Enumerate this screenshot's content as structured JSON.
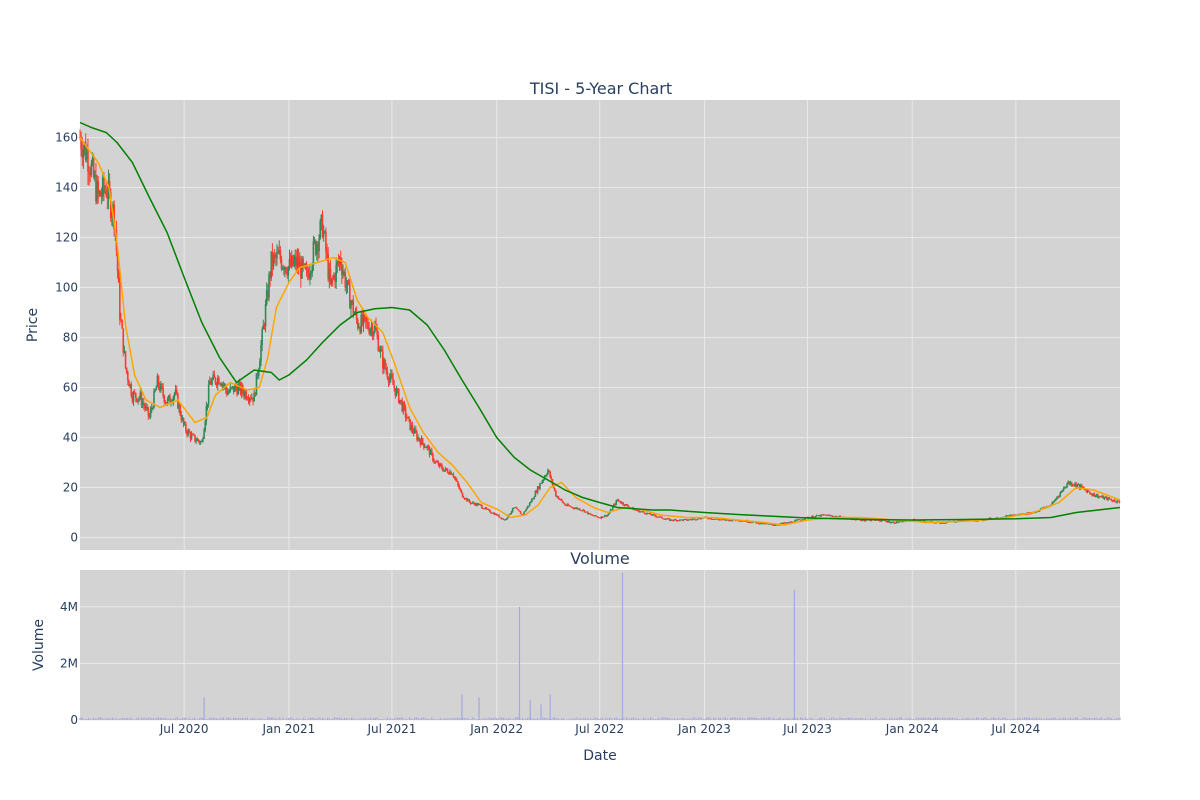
{
  "chart_data": [
    {
      "type": "candlestick",
      "title": "TISI - 5-Year Chart",
      "xlabel": "",
      "ylabel": "Price",
      "ylim": [
        -5,
        175
      ],
      "yticks": [
        0,
        20,
        40,
        60,
        80,
        100,
        120,
        140,
        160
      ],
      "grid": true,
      "legend": "none",
      "colors": {
        "up": "#2e8b57",
        "down": "#ff3b30",
        "ma_short": "#ffa500",
        "ma_long": "#008000",
        "plot_bg": "#d3d3d3",
        "grid": "#e8e8e8"
      },
      "series": [
        {
          "kind": "ohlc_close_path",
          "points": [
            [
              "2019-12-31",
              160
            ],
            [
              "2020-01-15",
              152
            ],
            [
              "2020-02-01",
              136
            ],
            [
              "2020-02-15",
              140
            ],
            [
              "2020-03-01",
              128
            ],
            [
              "2020-03-10",
              90
            ],
            [
              "2020-03-20",
              68
            ],
            [
              "2020-04-01",
              57
            ],
            [
              "2020-04-15",
              56
            ],
            [
              "2020-05-01",
              48
            ],
            [
              "2020-05-15",
              62
            ],
            [
              "2020-06-01",
              54
            ],
            [
              "2020-06-15",
              58
            ],
            [
              "2020-07-01",
              44
            ],
            [
              "2020-07-15",
              40
            ],
            [
              "2020-08-01",
              38
            ],
            [
              "2020-08-15",
              62
            ],
            [
              "2020-09-01",
              64
            ],
            [
              "2020-09-15",
              58
            ],
            [
              "2020-10-01",
              60
            ],
            [
              "2020-10-15",
              58
            ],
            [
              "2020-11-01",
              56
            ],
            [
              "2020-11-15",
              80
            ],
            [
              "2020-12-01",
              110
            ],
            [
              "2020-12-15",
              112
            ],
            [
              "2021-01-01",
              108
            ],
            [
              "2021-01-15",
              110
            ],
            [
              "2021-02-01",
              104
            ],
            [
              "2021-02-15",
              116
            ],
            [
              "2021-03-01",
              125
            ],
            [
              "2021-03-15",
              100
            ],
            [
              "2021-04-01",
              112
            ],
            [
              "2021-04-15",
              98
            ],
            [
              "2021-05-01",
              86
            ],
            [
              "2021-05-15",
              85
            ],
            [
              "2021-06-01",
              84
            ],
            [
              "2021-06-15",
              70
            ],
            [
              "2021-07-01",
              62
            ],
            [
              "2021-07-15",
              55
            ],
            [
              "2021-08-01",
              45
            ],
            [
              "2021-08-15",
              40
            ],
            [
              "2021-09-01",
              36
            ],
            [
              "2021-09-15",
              30
            ],
            [
              "2021-10-01",
              27
            ],
            [
              "2021-10-15",
              26
            ],
            [
              "2021-11-01",
              17
            ],
            [
              "2021-11-15",
              14
            ],
            [
              "2021-12-01",
              13
            ],
            [
              "2021-12-15",
              11
            ],
            [
              "2022-01-01",
              9
            ],
            [
              "2022-01-15",
              7
            ],
            [
              "2022-02-01",
              12
            ],
            [
              "2022-02-15",
              9
            ],
            [
              "2022-03-01",
              14
            ],
            [
              "2022-03-15",
              20
            ],
            [
              "2022-04-01",
              27
            ],
            [
              "2022-04-15",
              17
            ],
            [
              "2022-05-01",
              13
            ],
            [
              "2022-05-15",
              12
            ],
            [
              "2022-06-01",
              11
            ],
            [
              "2022-06-15",
              9
            ],
            [
              "2022-07-01",
              8
            ],
            [
              "2022-07-15",
              9
            ],
            [
              "2022-08-01",
              15
            ],
            [
              "2022-08-15",
              13
            ],
            [
              "2022-09-01",
              11
            ],
            [
              "2022-10-01",
              9
            ],
            [
              "2022-11-01",
              7
            ],
            [
              "2022-12-01",
              7
            ],
            [
              "2023-01-01",
              8
            ],
            [
              "2023-02-01",
              7
            ],
            [
              "2023-03-01",
              7
            ],
            [
              "2023-04-01",
              6
            ],
            [
              "2023-05-01",
              5
            ],
            [
              "2023-06-01",
              6
            ],
            [
              "2023-07-01",
              8
            ],
            [
              "2023-08-01",
              9
            ],
            [
              "2023-09-01",
              8
            ],
            [
              "2023-10-01",
              7
            ],
            [
              "2023-11-01",
              7
            ],
            [
              "2023-12-01",
              6
            ],
            [
              "2024-01-01",
              7
            ],
            [
              "2024-02-01",
              6
            ],
            [
              "2024-03-01",
              6
            ],
            [
              "2024-04-01",
              7
            ],
            [
              "2024-05-01",
              7
            ],
            [
              "2024-06-01",
              8
            ],
            [
              "2024-07-01",
              9
            ],
            [
              "2024-08-01",
              10
            ],
            [
              "2024-09-01",
              13
            ],
            [
              "2024-10-01",
              22
            ],
            [
              "2024-10-15",
              21
            ],
            [
              "2024-11-01",
              19
            ],
            [
              "2024-11-15",
              17
            ],
            [
              "2024-12-01",
              16
            ],
            [
              "2024-12-31",
              14
            ]
          ]
        },
        {
          "kind": "ma_short",
          "points": [
            [
              "2019-12-31",
              160
            ],
            [
              "2020-02-01",
              150
            ],
            [
              "2020-02-20",
              140
            ],
            [
              "2020-03-05",
              118
            ],
            [
              "2020-03-20",
              85
            ],
            [
              "2020-04-05",
              65
            ],
            [
              "2020-04-25",
              55
            ],
            [
              "2020-05-20",
              52
            ],
            [
              "2020-06-20",
              55
            ],
            [
              "2020-07-20",
              46
            ],
            [
              "2020-08-10",
              48
            ],
            [
              "2020-08-25",
              57
            ],
            [
              "2020-09-20",
              62
            ],
            [
              "2020-10-20",
              59
            ],
            [
              "2020-11-10",
              60
            ],
            [
              "2020-11-25",
              72
            ],
            [
              "2020-12-10",
              92
            ],
            [
              "2021-01-01",
              102
            ],
            [
              "2021-01-20",
              108
            ],
            [
              "2021-02-20",
              110
            ],
            [
              "2021-03-20",
              112
            ],
            [
              "2021-04-10",
              110
            ],
            [
              "2021-05-01",
              95
            ],
            [
              "2021-05-20",
              88
            ],
            [
              "2021-06-15",
              82
            ],
            [
              "2021-07-05",
              70
            ],
            [
              "2021-08-01",
              52
            ],
            [
              "2021-08-25",
              42
            ],
            [
              "2021-09-20",
              34
            ],
            [
              "2021-10-15",
              29
            ],
            [
              "2021-11-10",
              22
            ],
            [
              "2021-12-05",
              14
            ],
            [
              "2022-01-05",
              11
            ],
            [
              "2022-01-25",
              8
            ],
            [
              "2022-02-20",
              9
            ],
            [
              "2022-03-15",
              13
            ],
            [
              "2022-04-05",
              20
            ],
            [
              "2022-04-25",
              22
            ],
            [
              "2022-05-20",
              16
            ],
            [
              "2022-06-20",
              12
            ],
            [
              "2022-07-15",
              10
            ],
            [
              "2022-08-15",
              12
            ],
            [
              "2022-09-15",
              11
            ],
            [
              "2022-10-15",
              9
            ],
            [
              "2022-12-01",
              8
            ],
            [
              "2023-01-15",
              8
            ],
            [
              "2023-03-01",
              7
            ],
            [
              "2023-04-15",
              6
            ],
            [
              "2023-05-20",
              5
            ],
            [
              "2023-07-01",
              7
            ],
            [
              "2023-08-20",
              8
            ],
            [
              "2023-10-01",
              8
            ],
            [
              "2023-12-01",
              7
            ],
            [
              "2024-02-01",
              6
            ],
            [
              "2024-04-01",
              6.5
            ],
            [
              "2024-06-01",
              7.5
            ],
            [
              "2024-08-01",
              10
            ],
            [
              "2024-09-15",
              14
            ],
            [
              "2024-10-15",
              20
            ],
            [
              "2024-11-15",
              19
            ],
            [
              "2024-12-31",
              15
            ]
          ]
        },
        {
          "kind": "ma_long",
          "points": [
            [
              "2019-12-31",
              166
            ],
            [
              "2020-01-20",
              164
            ],
            [
              "2020-02-15",
              162
            ],
            [
              "2020-03-05",
              158
            ],
            [
              "2020-04-01",
              150
            ],
            [
              "2020-05-01",
              136
            ],
            [
              "2020-06-01",
              122
            ],
            [
              "2020-07-01",
              104
            ],
            [
              "2020-08-01",
              86
            ],
            [
              "2020-09-01",
              72
            ],
            [
              "2020-10-01",
              62
            ],
            [
              "2020-11-01",
              67
            ],
            [
              "2020-12-01",
              66
            ],
            [
              "2020-12-15",
              63
            ],
            [
              "2021-01-01",
              65
            ],
            [
              "2021-02-01",
              71
            ],
            [
              "2021-03-01",
              78
            ],
            [
              "2021-04-01",
              85
            ],
            [
              "2021-05-01",
              90
            ],
            [
              "2021-06-01",
              91.5
            ],
            [
              "2021-07-01",
              92
            ],
            [
              "2021-08-01",
              91
            ],
            [
              "2021-09-01",
              85
            ],
            [
              "2021-10-01",
              75
            ],
            [
              "2021-11-01",
              63
            ],
            [
              "2021-12-01",
              52
            ],
            [
              "2022-01-01",
              40
            ],
            [
              "2022-02-01",
              32
            ],
            [
              "2022-03-01",
              27
            ],
            [
              "2022-04-01",
              23
            ],
            [
              "2022-05-01",
              19
            ],
            [
              "2022-06-01",
              16
            ],
            [
              "2022-07-01",
              14
            ],
            [
              "2022-08-01",
              12
            ],
            [
              "2022-09-01",
              11.5
            ],
            [
              "2022-10-01",
              11
            ],
            [
              "2022-11-01",
              11
            ],
            [
              "2022-12-01",
              10.5
            ],
            [
              "2023-01-01",
              10
            ],
            [
              "2023-03-01",
              9.2
            ],
            [
              "2023-05-01",
              8.5
            ],
            [
              "2023-07-01",
              7.8
            ],
            [
              "2023-10-01",
              7.3
            ],
            [
              "2024-01-01",
              7.0
            ],
            [
              "2024-04-01",
              7.2
            ],
            [
              "2024-07-01",
              7.5
            ],
            [
              "2024-09-01",
              8
            ],
            [
              "2024-10-15",
              10
            ],
            [
              "2024-12-31",
              12
            ]
          ]
        }
      ]
    },
    {
      "type": "bar",
      "title": "Volume",
      "xlabel": "Date",
      "ylabel": "Volume",
      "ylim": [
        0,
        5300000
      ],
      "yticks": [
        0,
        2000000,
        4000000
      ],
      "ytick_labels": [
        "0",
        "2M",
        "4M"
      ],
      "xrange": [
        "2019-12-31",
        "2024-12-31"
      ],
      "xticks": [
        "2020-07-01",
        "2021-01-01",
        "2021-07-01",
        "2022-01-01",
        "2022-07-01",
        "2023-01-01",
        "2023-07-01",
        "2024-01-01",
        "2024-07-01"
      ],
      "xtick_labels": [
        "Jul 2020",
        "Jan 2021",
        "Jul 2021",
        "Jan 2022",
        "Jul 2022",
        "Jan 2023",
        "Jul 2023",
        "Jan 2024",
        "Jul 2024"
      ],
      "bar_color": "#a4a9e0",
      "base_volume": 60000,
      "spikes": [
        [
          "2020-08-05",
          800000
        ],
        [
          "2021-11-01",
          900000
        ],
        [
          "2021-12-01",
          800000
        ],
        [
          "2022-02-10",
          4000000
        ],
        [
          "2022-03-01",
          700000
        ],
        [
          "2022-03-20",
          550000
        ],
        [
          "2022-04-05",
          900000
        ],
        [
          "2022-08-10",
          5200000
        ],
        [
          "2023-06-08",
          4600000
        ]
      ]
    }
  ]
}
